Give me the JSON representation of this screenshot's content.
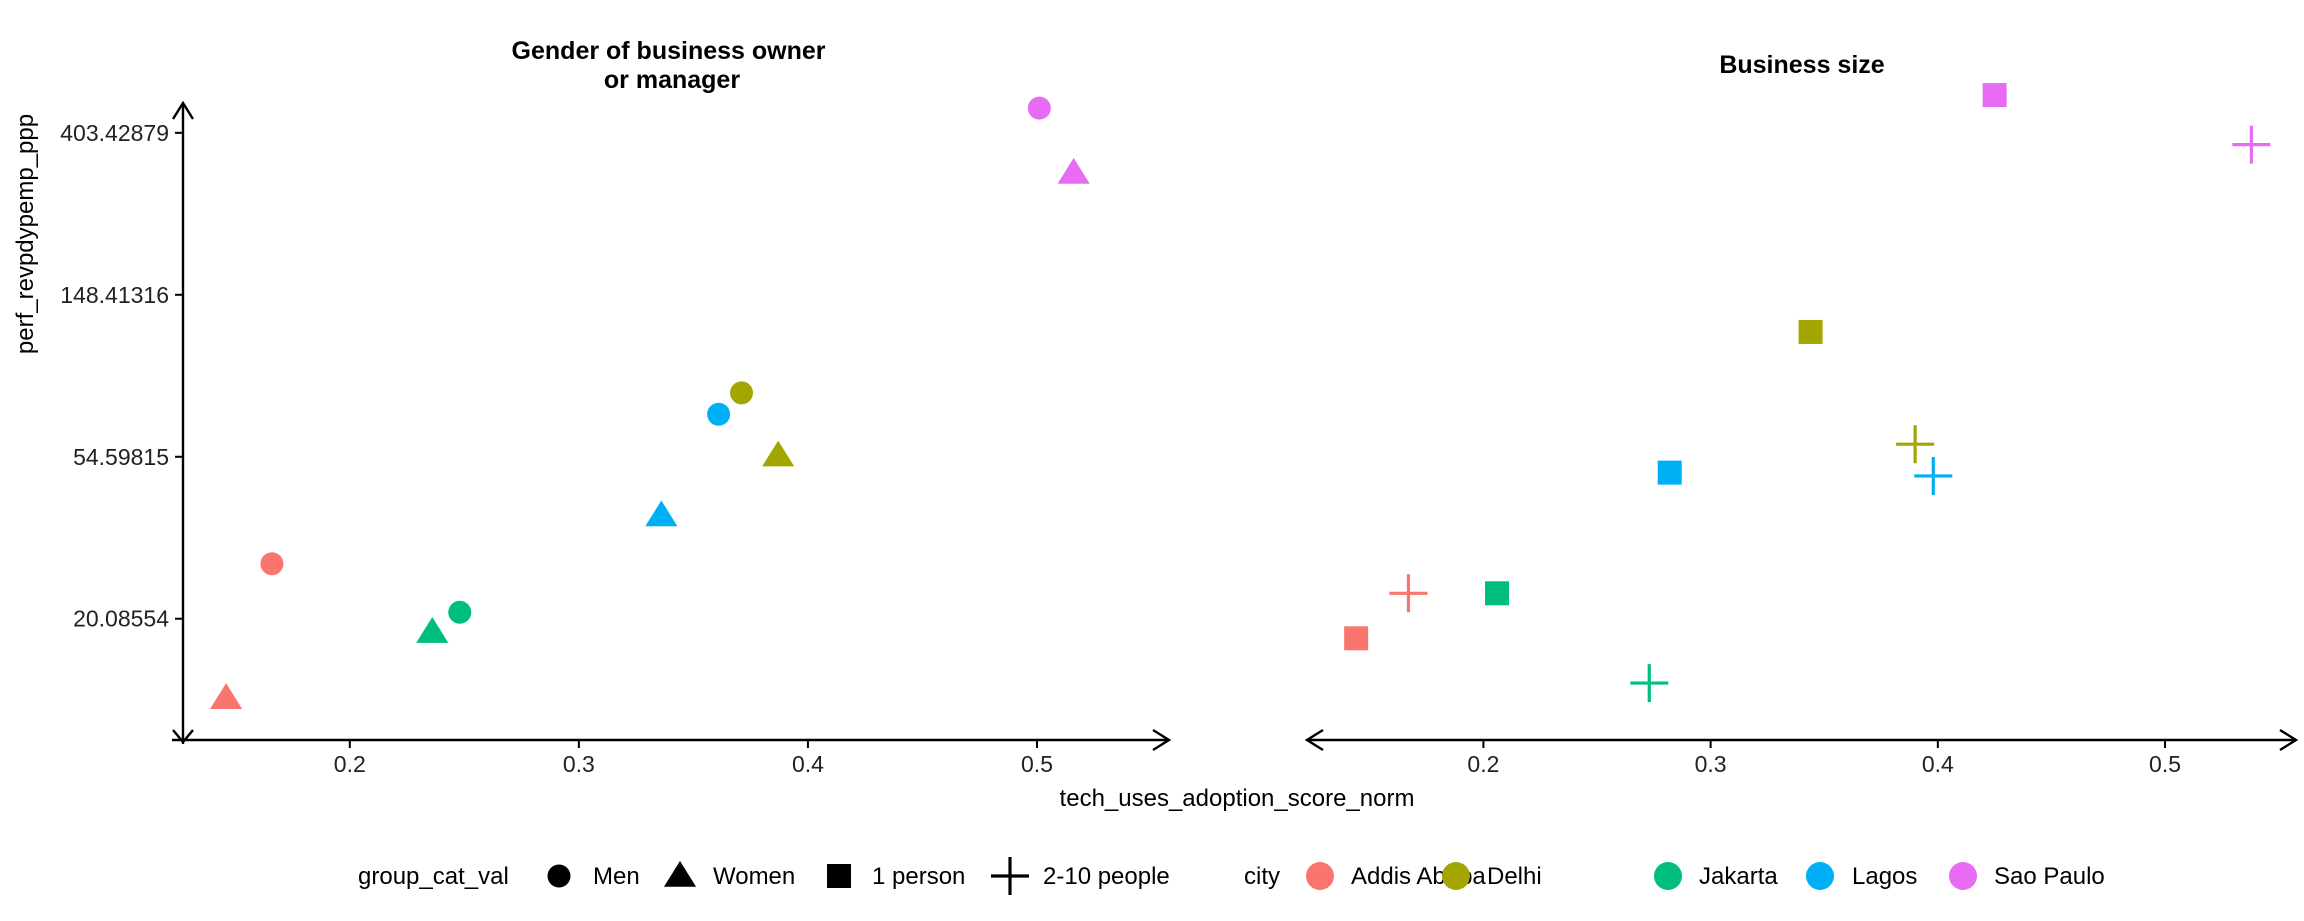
{
  "colors": {
    "Addis Ababa": "#F8766D",
    "Delhi": "#A3A500",
    "Jakarta": "#00BF7D",
    "Lagos": "#00B0F6",
    "Sao Paulo": "#E76BF3"
  },
  "chart_data": [
    {
      "type": "scatter",
      "title": "Gender of business owner or manager",
      "title_lines": [
        "Gender of business owner",
        "or manager"
      ],
      "xlabel": "tech_uses_adoption_score_norm",
      "ylabel": "perf_revpdypemp_ppp",
      "y_scale": "log",
      "xlim": [
        0.125,
        0.555
      ],
      "ylim": [
        9.5,
        485
      ],
      "x_ticks": [
        0.2,
        0.3,
        0.4,
        0.5
      ],
      "x_tick_labels": [
        "0.2",
        "0.3",
        "0.4",
        "0.5"
      ],
      "y_ticks": [
        20.08554,
        54.59815,
        148.41316,
        403.42879
      ],
      "y_tick_labels": [
        "20.08554",
        "54.59815",
        "148.41316",
        "403.42879"
      ],
      "points": [
        {
          "x": 0.166,
          "y": 28.2,
          "group": "Men",
          "city": "Addis Ababa"
        },
        {
          "x": 0.146,
          "y": 12.3,
          "group": "Women",
          "city": "Addis Ababa"
        },
        {
          "x": 0.248,
          "y": 20.9,
          "group": "Men",
          "city": "Jakarta"
        },
        {
          "x": 0.236,
          "y": 18.5,
          "group": "Women",
          "city": "Jakarta"
        },
        {
          "x": 0.361,
          "y": 71.0,
          "group": "Men",
          "city": "Lagos"
        },
        {
          "x": 0.336,
          "y": 38.0,
          "group": "Women",
          "city": "Lagos"
        },
        {
          "x": 0.371,
          "y": 81.0,
          "group": "Men",
          "city": "Delhi"
        },
        {
          "x": 0.387,
          "y": 55.0,
          "group": "Women",
          "city": "Delhi"
        },
        {
          "x": 0.501,
          "y": 470.0,
          "group": "Men",
          "city": "Sao Paulo"
        },
        {
          "x": 0.516,
          "y": 315.0,
          "group": "Women",
          "city": "Sao Paulo"
        }
      ]
    },
    {
      "type": "scatter",
      "title": "Business size",
      "title_lines": [
        "Business size"
      ],
      "xlabel": "",
      "y_scale": "log",
      "xlim": [
        0.125,
        0.555
      ],
      "ylim": [
        9.5,
        485
      ],
      "x_ticks": [
        0.2,
        0.3,
        0.4,
        0.5
      ],
      "x_tick_labels": [
        "0.2",
        "0.3",
        "0.4",
        "0.5"
      ],
      "points": [
        {
          "x": 0.144,
          "y": 17.8,
          "group": "1 person",
          "city": "Addis Ababa"
        },
        {
          "x": 0.167,
          "y": 23.5,
          "group": "2-10 people",
          "city": "Addis Ababa"
        },
        {
          "x": 0.206,
          "y": 23.5,
          "group": "1 person",
          "city": "Jakarta"
        },
        {
          "x": 0.273,
          "y": 13.5,
          "group": "2-10 people",
          "city": "Jakarta"
        },
        {
          "x": 0.282,
          "y": 49.5,
          "group": "1 person",
          "city": "Lagos"
        },
        {
          "x": 0.398,
          "y": 48.5,
          "group": "2-10 people",
          "city": "Lagos"
        },
        {
          "x": 0.344,
          "y": 118.0,
          "group": "1 person",
          "city": "Delhi"
        },
        {
          "x": 0.39,
          "y": 59.0,
          "group": "2-10 people",
          "city": "Delhi"
        },
        {
          "x": 0.425,
          "y": 510.0,
          "group": "1 person",
          "city": "Sao Paulo"
        },
        {
          "x": 0.538,
          "y": 375.0,
          "group": "2-10 people",
          "city": "Sao Paulo"
        }
      ]
    }
  ],
  "legend": {
    "shape_title": "group_cat_val",
    "shape_items": [
      {
        "label": "Men",
        "shape": "circle"
      },
      {
        "label": "Women",
        "shape": "triangle"
      },
      {
        "label": "1 person",
        "shape": "square"
      },
      {
        "label": "2-10 people",
        "shape": "plus"
      }
    ],
    "color_title": "city",
    "color_items": [
      "Addis Ababa",
      "Delhi",
      "Jakarta",
      "Lagos",
      "Sao Paulo"
    ]
  }
}
